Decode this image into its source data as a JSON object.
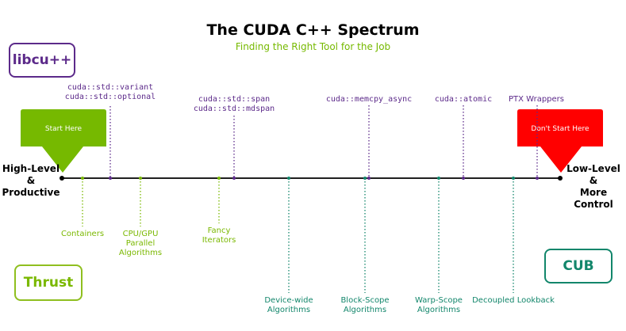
{
  "title": "The CUDA C++ Spectrum",
  "subtitle": "Finding the Right Tool for the Job",
  "libraries": {
    "libcu": "libcu++",
    "thrust": "Thrust",
    "cub": "CUB"
  },
  "ends": {
    "left": [
      "High-Level",
      "&",
      "Productive"
    ],
    "right": [
      "Low-Level",
      "&",
      "More Control"
    ]
  },
  "arrows": {
    "start": "Start Here",
    "dont_start": "Don't Start Here"
  },
  "libcu_items": [
    {
      "lines": [
        "cuda::std::variant",
        "cuda::std::optional"
      ]
    },
    {
      "lines": [
        "cuda::std::span",
        "cuda::std::mdspan"
      ]
    },
    {
      "lines": [
        "cuda::memcpy_async"
      ]
    },
    {
      "lines": [
        "cuda::atomic"
      ]
    },
    {
      "lines": [
        "PTX Wrappers"
      ]
    }
  ],
  "thrust_items": [
    {
      "lines": [
        "Containers"
      ]
    },
    {
      "lines": [
        "CPU/GPU",
        "Parallel",
        "Algorithms"
      ]
    },
    {
      "lines": [
        "Fancy",
        "Iterators"
      ]
    }
  ],
  "cub_items": [
    {
      "lines": [
        "Device-wide",
        "Algorithms"
      ]
    },
    {
      "lines": [
        "Block-Scope",
        "Algorithms"
      ]
    },
    {
      "lines": [
        "Warp-Scope",
        "Algorithms"
      ]
    },
    {
      "lines": [
        "Decoupled Lookback"
      ]
    }
  ],
  "colors": {
    "libcu": "#5c2a8a",
    "thrust": "#7ab800",
    "cub": "#12866b",
    "start_arrow": "#76b900",
    "dont_start_arrow": "#ff0000"
  }
}
